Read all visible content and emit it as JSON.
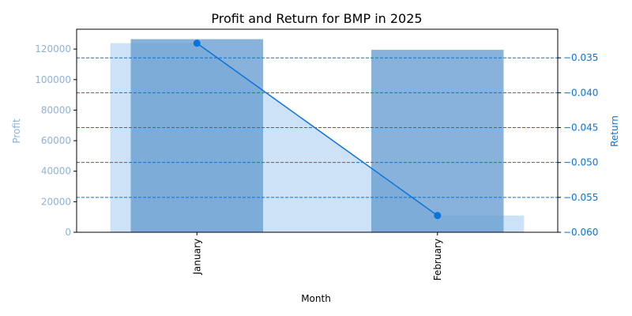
{
  "chart_data": {
    "type": "bar+line",
    "title": "Profit and Return for BMP in 2025",
    "xlabel": "Month",
    "ylabel_left": "Profit",
    "ylabel_right": "Return",
    "categories": [
      "January",
      "February"
    ],
    "profit": {
      "values": [
        126500,
        119500
      ],
      "color": "#6a9fcf",
      "ylim": [
        0,
        133000
      ],
      "ticks": [
        0,
        20000,
        40000,
        60000,
        80000,
        100000,
        120000
      ]
    },
    "return": {
      "values": [
        -0.0329,
        -0.0576
      ],
      "color": "#0a74da",
      "ylim": [
        -0.06,
        -0.0309
      ],
      "ticks": [
        -0.06,
        -0.055,
        -0.05,
        -0.045,
        -0.04,
        -0.035
      ],
      "tick_labels": [
        "−0.060",
        "−0.055",
        "−0.050",
        "−0.045",
        "−0.040",
        "−0.035"
      ]
    },
    "area_fill": {
      "color": "#cde1f7"
    },
    "grid": "dashed horizontal lines at right-axis ticks",
    "legend": "none"
  }
}
